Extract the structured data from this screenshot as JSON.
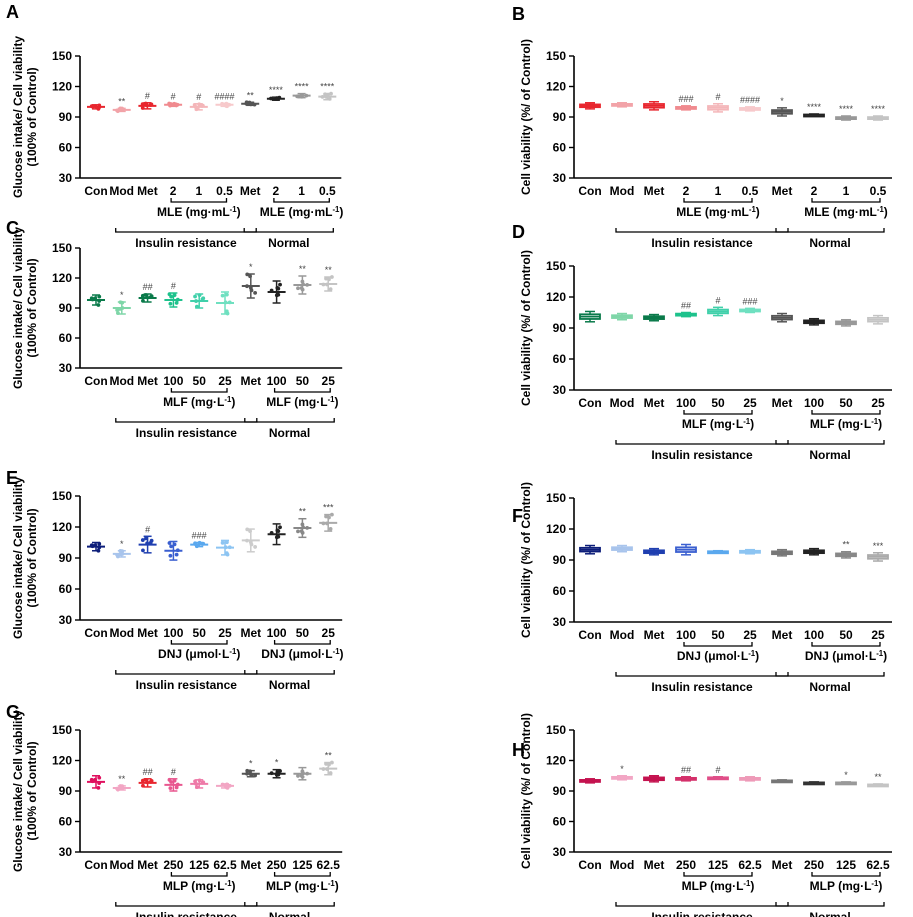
{
  "chart_data": [
    {
      "panel_label": "A",
      "type": "scatter",
      "ylabel": "Glucose intake/ Cell viability",
      "ylabel2": "(100% of Control)",
      "ylim": [
        30,
        150
      ],
      "yticks": [
        "30",
        "60",
        "90",
        "120",
        "150"
      ],
      "categories": [
        "Con",
        "Mod",
        "Met",
        "2",
        "1",
        "0.5",
        "Met",
        "2",
        "1",
        "0.5"
      ],
      "colors": [
        "#e8262e",
        "#f2a3a8",
        "#e8262e",
        "#f08a8f",
        "#f4b6b9",
        "#f7c9cb",
        "#555555",
        "#222222",
        "#999999",
        "#c4c4c4"
      ],
      "means": [
        100,
        97,
        101,
        102,
        100,
        102,
        103,
        108,
        111,
        110
      ],
      "sds": [
        2,
        1.5,
        3,
        1.5,
        3,
        1.5,
        1.5,
        1.5,
        2,
        3
      ],
      "sig": [
        "",
        "**",
        "#",
        "#",
        "#",
        "####",
        "**",
        "****",
        "****",
        "****"
      ],
      "concentration_label": "MLE (mg·mL-1)",
      "groups": [
        "Insulin resistance",
        "Normal"
      ]
    },
    {
      "panel_label": "B",
      "type": "box",
      "ylabel": "Cell viability (%/ of Control)",
      "ylim": [
        30,
        150
      ],
      "yticks": [
        "30",
        "60",
        "90",
        "120",
        "150"
      ],
      "categories": [
        "Con",
        "Mod",
        "Met",
        "2",
        "1",
        "0.5",
        "Met",
        "2",
        "1",
        "0.5"
      ],
      "colors": [
        "#e8262e",
        "#f2a3a8",
        "#e8262e",
        "#f08a8f",
        "#f4b6b9",
        "#f7c9cb",
        "#555555",
        "#222222",
        "#999999",
        "#c4c4c4"
      ],
      "means": [
        101,
        102,
        101,
        99,
        99,
        98,
        95,
        92,
        89,
        89
      ],
      "sds": [
        3,
        2,
        4,
        2,
        4,
        2,
        4,
        1,
        2,
        2
      ],
      "sig": [
        "",
        "",
        "",
        "###",
        "#",
        "####",
        "*",
        "****",
        "****",
        "****"
      ],
      "concentration_label": "MLE (mg·mL-1)",
      "groups": [
        "Insulin resistance",
        "Normal"
      ]
    },
    {
      "panel_label": "C",
      "type": "scatter",
      "ylabel": "Glucose intake/ Cell viability",
      "ylabel2": "(100% of Control)",
      "ylim": [
        30,
        150
      ],
      "yticks": [
        "30",
        "60",
        "90",
        "120",
        "150"
      ],
      "categories": [
        "Con",
        "Mod",
        "Met",
        "100",
        "50",
        "25",
        "Met",
        "100",
        "50",
        "25"
      ],
      "colors": [
        "#0a7a4a",
        "#7fd6a8",
        "#0a7a4a",
        "#1ec28c",
        "#40d0aa",
        "#6fe0c0",
        "#555555",
        "#222222",
        "#999999",
        "#c4c4c4"
      ],
      "means": [
        98,
        90,
        100,
        98,
        97,
        95,
        112,
        106,
        113,
        114
      ],
      "sds": [
        5,
        6,
        4,
        7,
        7,
        11,
        12,
        11,
        9,
        7
      ],
      "sig": [
        "",
        "*",
        "##",
        "#",
        "",
        "",
        "*",
        "",
        "**",
        "**"
      ],
      "concentration_label": "MLF (mg·L-1)",
      "groups": [
        "Insulin resistance",
        "Normal"
      ]
    },
    {
      "panel_label": "D",
      "type": "box",
      "ylabel": "Cell viability (%/ of Control)",
      "ylim": [
        30,
        150
      ],
      "yticks": [
        "30",
        "60",
        "90",
        "120",
        "150"
      ],
      "categories": [
        "Con",
        "Mod",
        "Met",
        "100",
        "50",
        "25",
        "Met",
        "100",
        "50",
        "25"
      ],
      "colors": [
        "#0a7a4a",
        "#7fd6a8",
        "#0a7a4a",
        "#1ec28c",
        "#40d0aa",
        "#6fe0c0",
        "#555555",
        "#222222",
        "#999999",
        "#c4c4c4"
      ],
      "means": [
        101,
        101,
        100,
        103,
        106,
        107,
        100,
        96,
        95,
        98
      ],
      "sds": [
        5,
        3,
        3,
        2,
        4,
        2,
        4,
        3,
        3,
        4
      ],
      "sig": [
        "",
        "",
        "",
        "##",
        "#",
        "###",
        "",
        "",
        "",
        ""
      ],
      "concentration_label": "MLF (mg·L-1)",
      "groups": [
        "Insulin resistance",
        "Normal"
      ]
    },
    {
      "panel_label": "E",
      "type": "scatter",
      "ylabel": "Glucose intake/ Cell viability",
      "ylabel2": "(100% of Control)",
      "ylim": [
        30,
        150
      ],
      "yticks": [
        "30",
        "60",
        "90",
        "120",
        "150"
      ],
      "categories": [
        "Con",
        "Mod",
        "Met",
        "100",
        "50",
        "25",
        "Met",
        "100",
        "50",
        "25"
      ],
      "colors": [
        "#0d1e7a",
        "#a8c4ec",
        "#1f3fb0",
        "#3a5fd0",
        "#5aa8ee",
        "#8cc4f2",
        "#cccccc",
        "#222222",
        "#888888",
        "#aaaaaa"
      ],
      "means": [
        101,
        94,
        103,
        97,
        103,
        100,
        107,
        113,
        119,
        124
      ],
      "sds": [
        4,
        3,
        8,
        9,
        2,
        7,
        11,
        10,
        9,
        8
      ],
      "sig": [
        "",
        "*",
        "#",
        "",
        "###",
        "",
        "",
        "",
        "**",
        "***"
      ],
      "concentration_label": "DNJ (μmol·L-1)",
      "groups": [
        "Insulin resistance",
        "Normal"
      ]
    },
    {
      "panel_label": "F",
      "type": "box",
      "ylabel": "Cell viability (%/ of Control)",
      "ylim": [
        30,
        150
      ],
      "yticks": [
        "30",
        "60",
        "90",
        "120",
        "150"
      ],
      "categories": [
        "Con",
        "Mod",
        "Met",
        "100",
        "50",
        "25",
        "Met",
        "100",
        "50",
        "25"
      ],
      "colors": [
        "#0d1e7a",
        "#a8c4ec",
        "#1f3fb0",
        "#3a5fd0",
        "#5aa8ee",
        "#8cc4f2",
        "#777777",
        "#222222",
        "#888888",
        "#aaaaaa"
      ],
      "means": [
        100,
        101,
        98,
        100,
        98,
        98,
        97,
        98,
        95,
        93
      ],
      "sds": [
        4,
        3,
        3,
        5,
        1,
        2,
        3,
        3,
        3,
        4
      ],
      "sig": [
        "",
        "",
        "",
        "",
        "",
        "",
        "",
        "",
        "**",
        "***"
      ],
      "concentration_label": "DNJ (μmol·L-1)",
      "groups": [
        "Insulin resistance",
        "Normal"
      ]
    },
    {
      "panel_label": "G",
      "type": "scatter",
      "ylabel": "Glucose intake/ Cell viability",
      "ylabel2": "(100% of Control)",
      "ylim": [
        30,
        150
      ],
      "yticks": [
        "30",
        "60",
        "90",
        "120",
        "150"
      ],
      "categories": [
        "Con",
        "Mod",
        "Met",
        "250",
        "125",
        "62.5",
        "Met",
        "250",
        "125",
        "62.5"
      ],
      "colors": [
        "#e0115f",
        "#f2a6c4",
        "#e8262e",
        "#e8578f",
        "#ee7aa8",
        "#f2a6c4",
        "#555555",
        "#222222",
        "#999999",
        "#c4c4c4"
      ],
      "means": [
        99,
        93,
        98,
        96,
        97,
        95,
        107,
        107,
        107,
        112
      ],
      "sds": [
        6,
        2,
        4,
        6,
        4,
        2,
        3,
        4,
        6,
        6
      ],
      "sig": [
        "",
        "**",
        "##",
        "#",
        "",
        "",
        "*",
        "*",
        "",
        "**"
      ],
      "concentration_label": "MLP (mg·L-1)",
      "groups": [
        "Insulin resistance",
        "Normal"
      ]
    },
    {
      "panel_label": "H",
      "type": "box",
      "ylabel": "Cell viability (%/ of Control)",
      "ylim": [
        30,
        150
      ],
      "yticks": [
        "30",
        "60",
        "90",
        "120",
        "150"
      ],
      "categories": [
        "Con",
        "Mod",
        "Met",
        "250",
        "125",
        "62.5",
        "Met",
        "250",
        "125",
        "62.5"
      ],
      "colors": [
        "#c4124f",
        "#f2a6c4",
        "#c4124f",
        "#d4306a",
        "#e04e88",
        "#ee9ab8",
        "#777777",
        "#333333",
        "#999999",
        "#c4c4c4"
      ],
      "means": [
        100,
        103,
        102,
        102,
        103,
        102,
        100,
        98,
        98,
        96
      ],
      "sds": [
        2,
        2,
        3,
        2,
        1,
        2,
        1,
        1,
        1,
        1
      ],
      "sig": [
        "",
        "*",
        "",
        "##",
        "#",
        "",
        "",
        "",
        "*",
        "**"
      ],
      "concentration_label": "MLP (mg·L-1)",
      "groups": [
        "Insulin resistance",
        "Normal"
      ]
    }
  ]
}
